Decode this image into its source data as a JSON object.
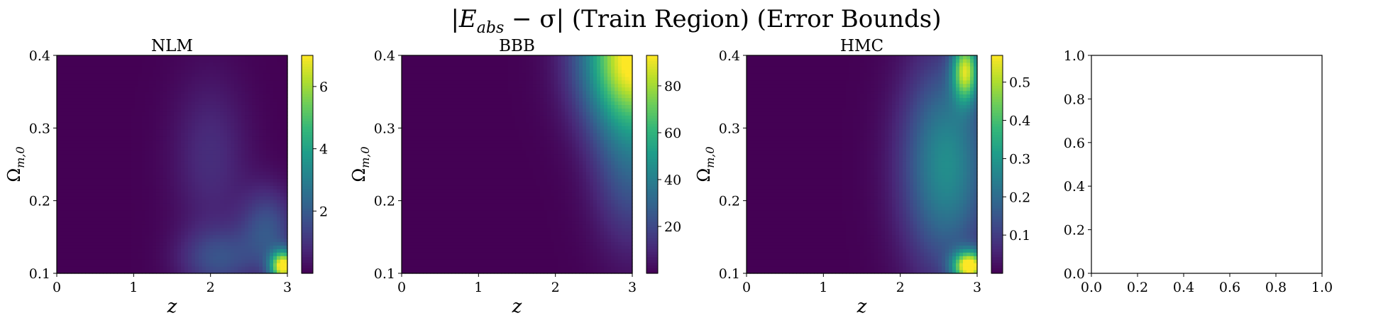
{
  "figure": {
    "title_main": "|E",
    "title_sub": "abs",
    "title_rest": " − σ| (Train Region) (Error Bounds)"
  },
  "colormap": "viridis",
  "chart_data": [
    {
      "type": "heatmap",
      "title": "NLM",
      "xlabel": "z",
      "ylabel_main": "Ω",
      "ylabel_sub": "m,0",
      "xlim": [
        0,
        3
      ],
      "ylim": [
        0.1,
        0.4
      ],
      "xticks": [
        "0",
        "1",
        "2",
        "3"
      ],
      "yticks": [
        "0.1",
        "0.2",
        "0.3",
        "0.4"
      ],
      "colorbar": {
        "min": 0,
        "max": 7,
        "ticks": [
          "2",
          "4",
          "6"
        ]
      },
      "hotspots": [
        {
          "x": 2.95,
          "y": 0.11,
          "value": 7.0,
          "sx": 0.12,
          "sy": 0.015
        },
        {
          "x": 2.75,
          "y": 0.16,
          "value": 1.8,
          "sx": 0.25,
          "sy": 0.04
        },
        {
          "x": 2.1,
          "y": 0.12,
          "value": 1.6,
          "sx": 0.35,
          "sy": 0.03
        },
        {
          "x": 2.0,
          "y": 0.26,
          "value": 0.9,
          "sx": 0.35,
          "sy": 0.08
        }
      ]
    },
    {
      "type": "heatmap",
      "title": "BBB",
      "xlabel": "z",
      "ylabel_main": "Ω",
      "ylabel_sub": "m,0",
      "xlim": [
        0,
        3
      ],
      "ylim": [
        0.1,
        0.4
      ],
      "xticks": [
        "0",
        "1",
        "2",
        "3"
      ],
      "yticks": [
        "0.1",
        "0.2",
        "0.3",
        "0.4"
      ],
      "colorbar": {
        "min": 0,
        "max": 93,
        "ticks": [
          "20",
          "40",
          "60",
          "80"
        ]
      },
      "hotspots": [
        {
          "x": 3.0,
          "y": 0.4,
          "value": 93,
          "sx": 0.45,
          "sy": 0.07
        },
        {
          "x": 3.0,
          "y": 0.25,
          "value": 25,
          "sx": 0.35,
          "sy": 0.08
        }
      ]
    },
    {
      "type": "heatmap",
      "title": "HMC",
      "xlabel": "z",
      "ylabel_main": "Ω",
      "ylabel_sub": "m,0",
      "xlim": [
        0,
        3
      ],
      "ylim": [
        0.1,
        0.4
      ],
      "xticks": [
        "0",
        "1",
        "2",
        "3"
      ],
      "yticks": [
        "0.1",
        "0.2",
        "0.3",
        "0.4"
      ],
      "colorbar": {
        "min": 0,
        "max": 0.57,
        "ticks": [
          "0.1",
          "0.2",
          "0.3",
          "0.4",
          "0.5"
        ]
      },
      "hotspots": [
        {
          "x": 2.9,
          "y": 0.11,
          "value": 0.57,
          "sx": 0.15,
          "sy": 0.015
        },
        {
          "x": 2.85,
          "y": 0.38,
          "value": 0.45,
          "sx": 0.12,
          "sy": 0.03
        },
        {
          "x": 2.6,
          "y": 0.25,
          "value": 0.28,
          "sx": 0.4,
          "sy": 0.1
        }
      ]
    },
    {
      "type": "empty",
      "title": "",
      "xlim": [
        0.0,
        1.0
      ],
      "ylim": [
        0.0,
        1.0
      ],
      "xticks": [
        "0.0",
        "0.2",
        "0.4",
        "0.6",
        "0.8",
        "1.0"
      ],
      "yticks": [
        "0.0",
        "0.2",
        "0.4",
        "0.6",
        "0.8",
        "1.0"
      ]
    }
  ]
}
